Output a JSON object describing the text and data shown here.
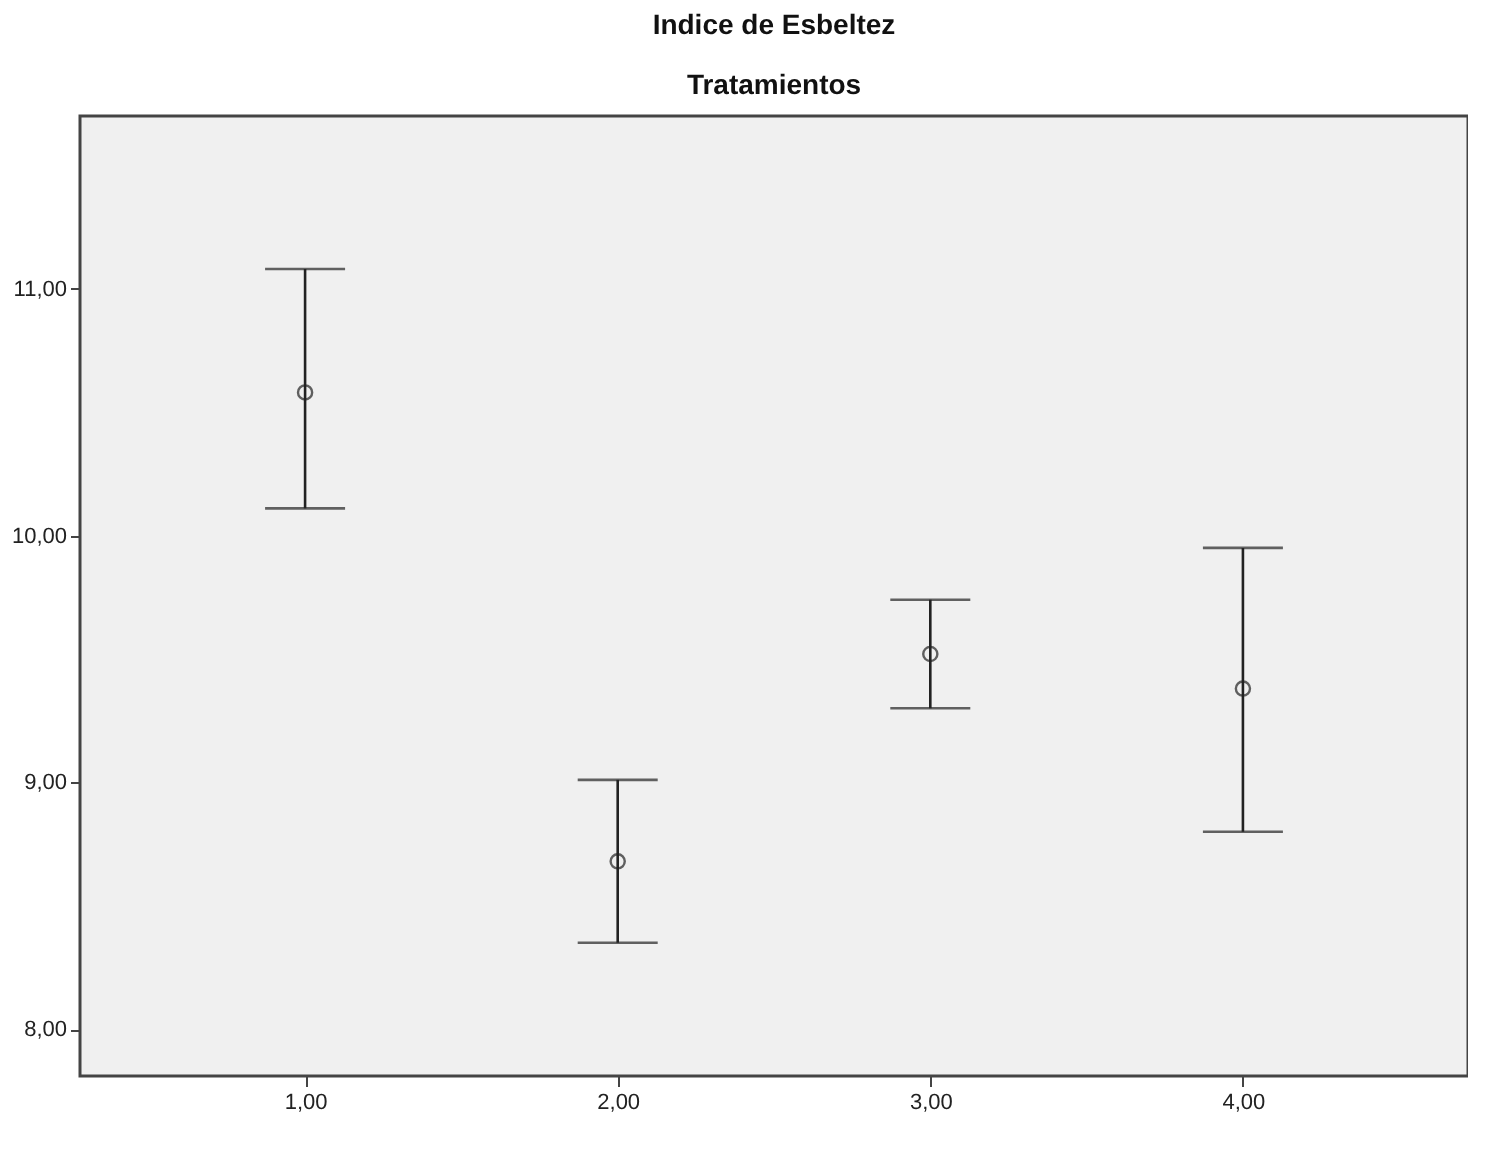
{
  "chart_data": {
    "type": "scatter",
    "title": "Indice de Esbeltez",
    "subtitle": "Tratamientos",
    "categories": [
      "1,00",
      "2,00",
      "3,00",
      "4,00"
    ],
    "values": [
      10.58,
      8.68,
      9.52,
      9.38
    ],
    "errors": [
      [
        10.11,
        11.08
      ],
      [
        8.35,
        9.01
      ],
      [
        9.3,
        9.74
      ],
      [
        8.8,
        9.95
      ]
    ],
    "color": "#222222",
    "marker": "circle",
    "grid": false,
    "ylim": [
      7.81,
      11.7
    ],
    "yticks": [
      {
        "value": 8,
        "label": "8,00"
      },
      {
        "value": 9,
        "label": "9,00"
      },
      {
        "value": 10,
        "label": "10,00"
      },
      {
        "value": 11,
        "label": "11,00"
      }
    ]
  }
}
